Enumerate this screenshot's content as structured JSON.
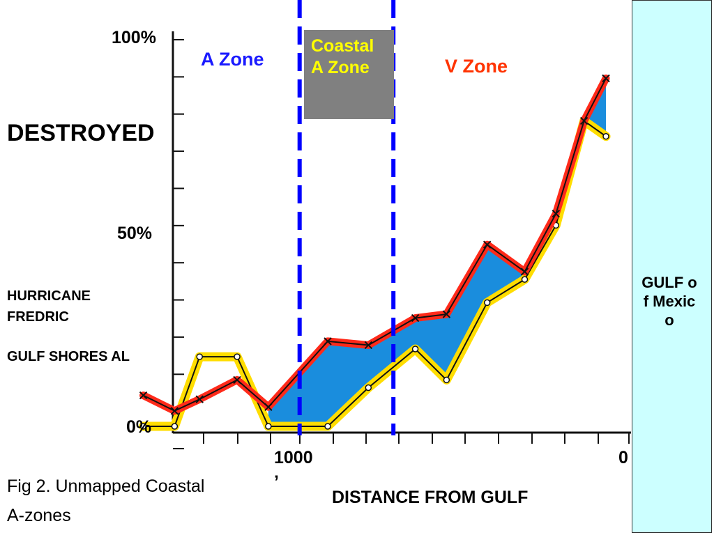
{
  "labels": {
    "y_100": "100%",
    "y_50": "50%",
    "y_0": "0%",
    "x_1000": "1000",
    "x_0": "0",
    "a_zone": "A Zone",
    "coastal_a_zone": "Coastal A Zone",
    "v_zone": "V Zone",
    "destroyed": "DESTROYED",
    "hurricane": "HURRICANE FREDRIC",
    "location": "GULF SHORES AL",
    "x_axis_title": "DISTANCE FROM GULF",
    "caption_line1": "Fig 2. Unmapped Coastal",
    "caption_line2": "A-zones",
    "caption_mark": "’",
    "gulf": "GULF of Mexico"
  },
  "colors": {
    "a_zone": "#1a1aff",
    "v_zone": "#ff3300",
    "coastal_box_bg": "#808080",
    "coastal_box_text": "#ffff00",
    "dashed_lines": "#0000ff",
    "red_series": "#ff2a1a",
    "yellow_series": "#ffdd00",
    "fill_between": "#1a8ddd",
    "gulf_bg": "#ccffff"
  },
  "chart_data": {
    "type": "line",
    "title": "",
    "xlabel": "DISTANCE FROM GULF",
    "ylabel": "DESTROYED",
    "x_reversed": true,
    "xlim": [
      1550,
      0
    ],
    "ylim": [
      0,
      100
    ],
    "x_ticks": [
      1000,
      0
    ],
    "y_ticks": [
      "0%",
      "50%",
      "100%"
    ],
    "zones": [
      {
        "name": "A Zone",
        "x_from": 1550,
        "x_to": 1000
      },
      {
        "name": "Coastal A Zone",
        "x_from": 1000,
        "x_to": 700
      },
      {
        "name": "V Zone",
        "x_from": 700,
        "x_to": 0
      }
    ],
    "boundaries": [
      1000,
      700
    ],
    "series": [
      {
        "x": [
          1500,
          1400,
          1320,
          1200,
          1100,
          910,
          780,
          630,
          530,
          400,
          280,
          180,
          90,
          20
        ],
        "values": [
          8,
          4,
          7,
          12,
          5,
          22,
          21,
          28,
          29,
          47,
          40,
          55,
          79,
          90
        ]
      },
      {
        "x": [
          1500,
          1400,
          1320,
          1200,
          1100,
          910,
          780,
          630,
          530,
          400,
          280,
          180,
          90,
          20
        ],
        "values": [
          0,
          0,
          18,
          18,
          0,
          0,
          10,
          20,
          12,
          32,
          38,
          52,
          79,
          75
        ]
      }
    ]
  }
}
